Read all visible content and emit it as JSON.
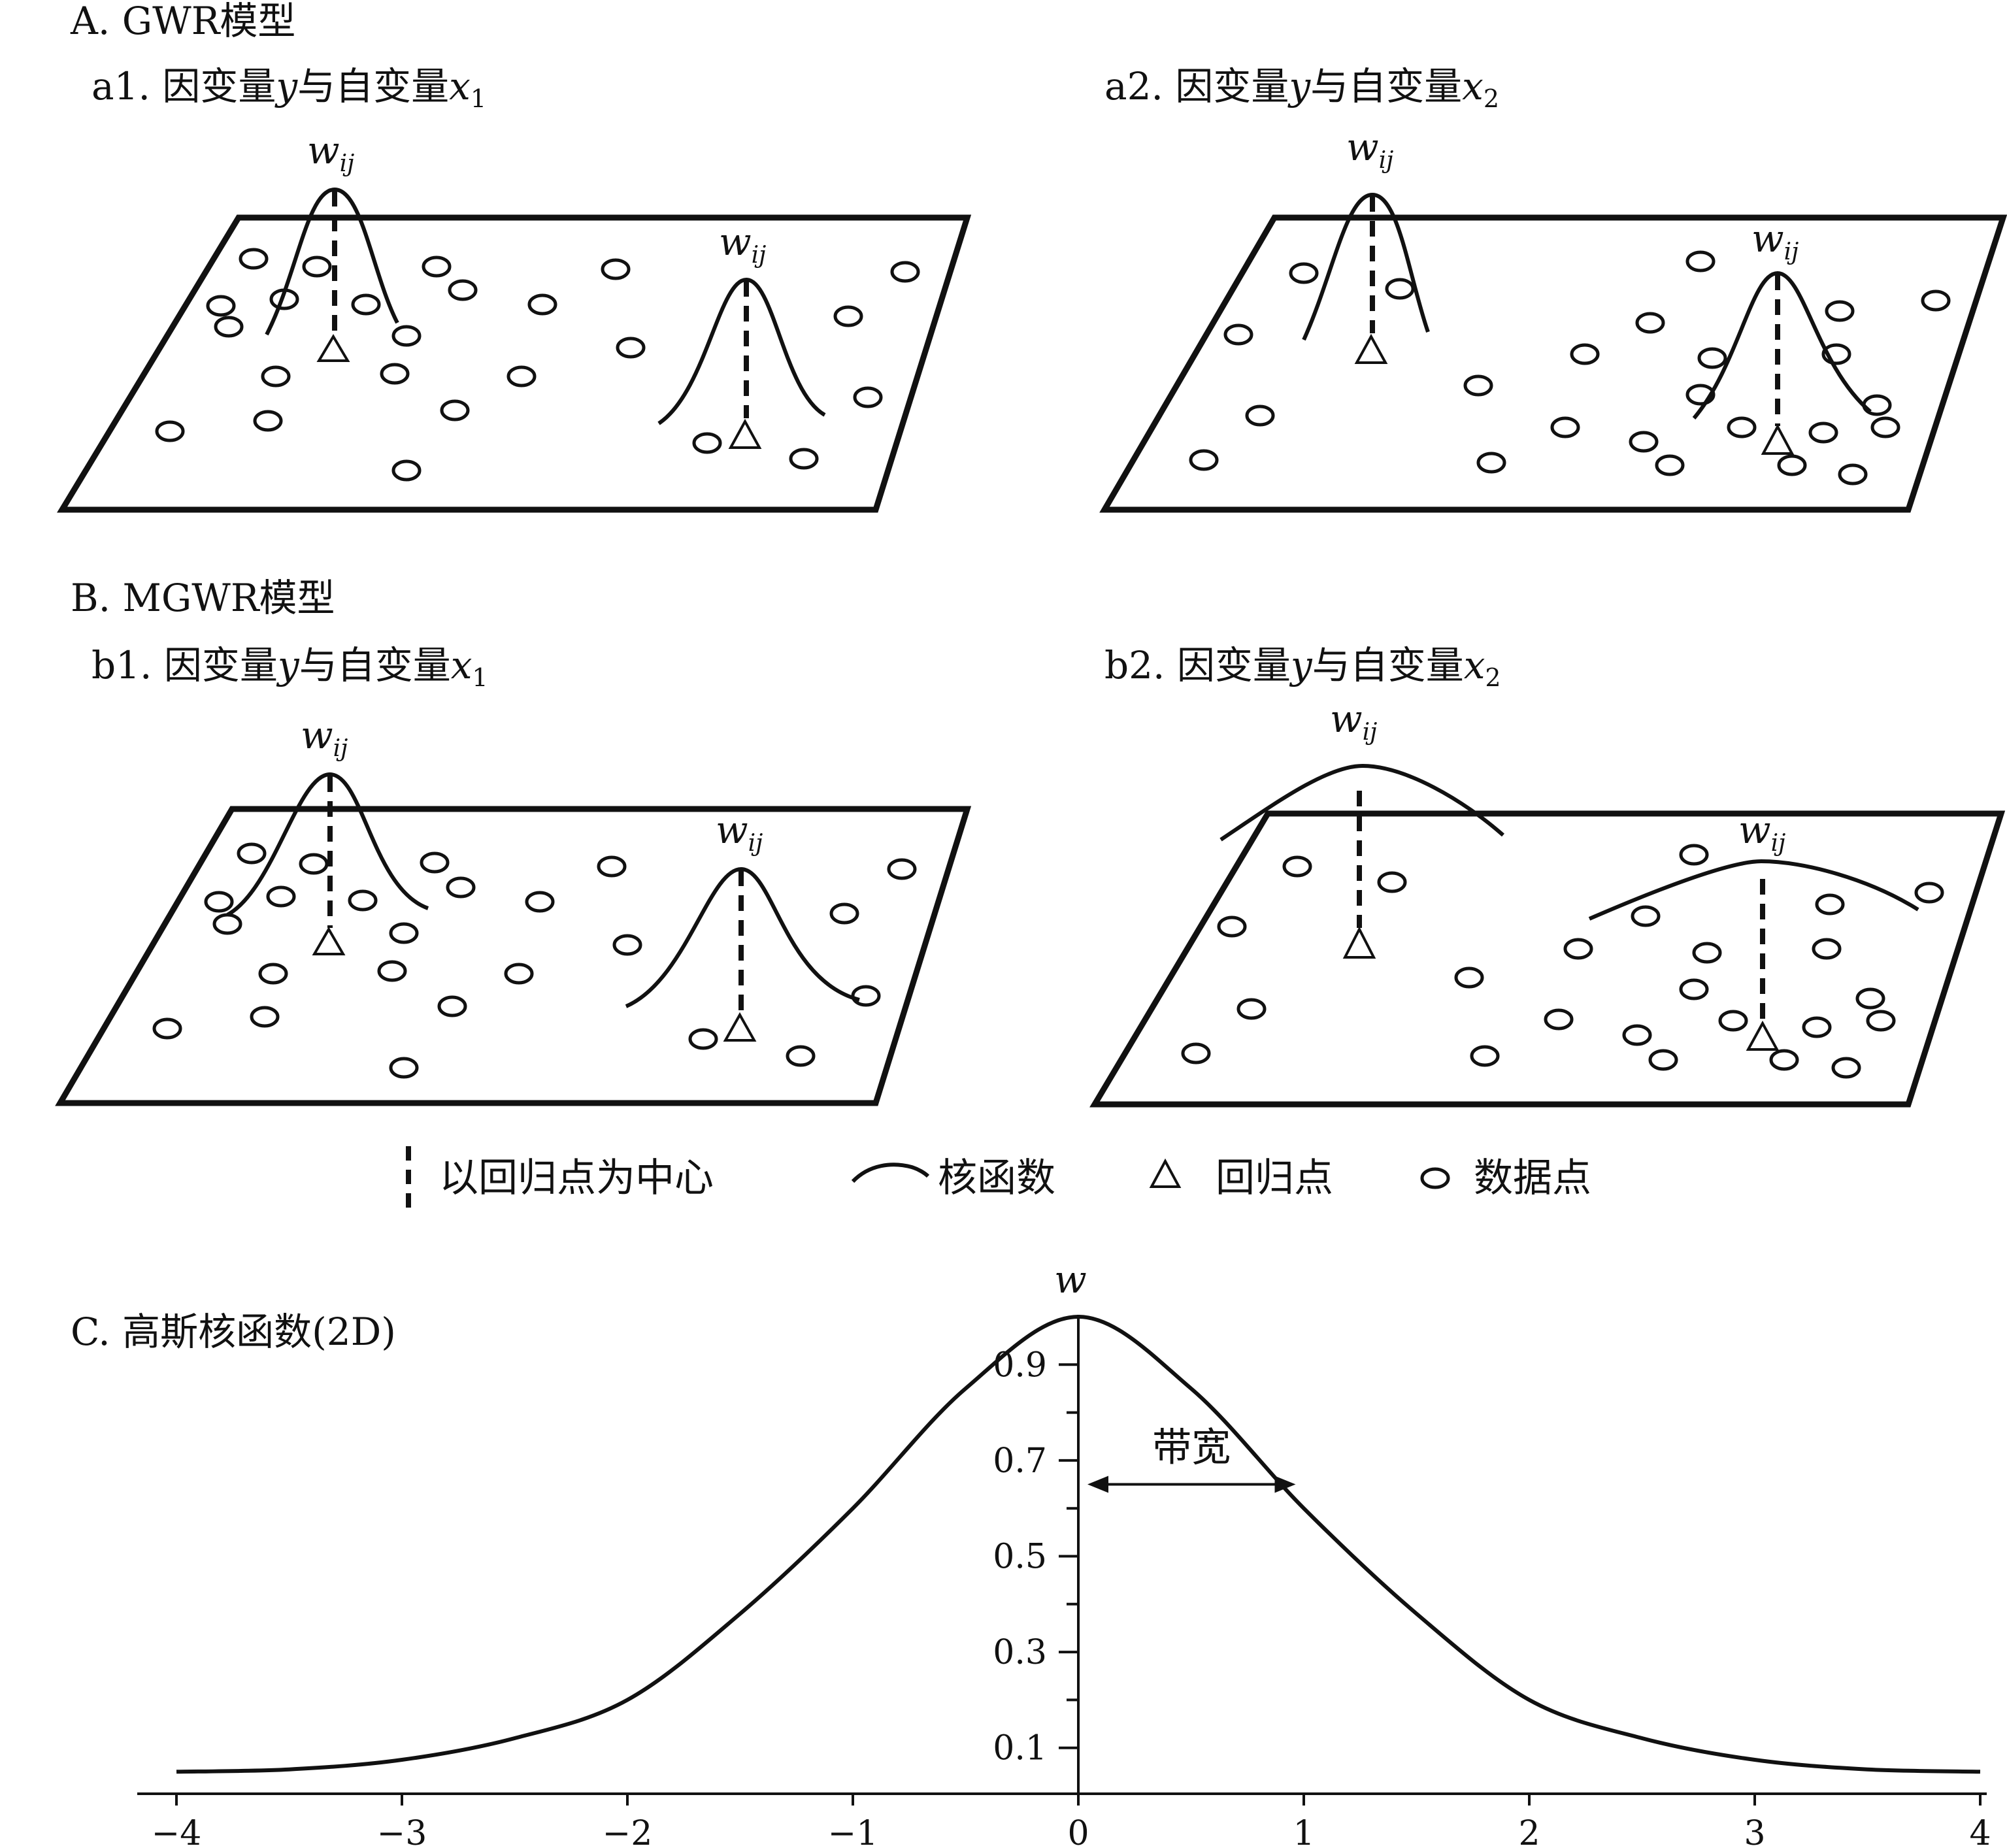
{
  "sections": {
    "A": {
      "title": "A. GWR模型"
    },
    "B": {
      "title": "B. MGWR模型"
    },
    "C": {
      "title": "C. 高斯核函数(2D)"
    }
  },
  "panels": {
    "a1": {
      "prefix": "a1. 因变量",
      "y": "y",
      "mid": "与自变量",
      "x": "x",
      "sub": "1"
    },
    "a2": {
      "prefix": "a2. 因变量",
      "y": "y",
      "mid": "与自变量",
      "x": "x",
      "sub": "2"
    },
    "b1": {
      "prefix": "b1. 因变量",
      "y": "y",
      "mid": "与自变量",
      "x": "x",
      "sub": "1"
    },
    "b2": {
      "prefix": "b2. 因变量",
      "y": "y",
      "mid": "与自变量",
      "x": "x",
      "sub": "2"
    }
  },
  "weight_label": {
    "w": "w",
    "sub": "ij"
  },
  "legend": {
    "center": "以回归点为中心",
    "kernel": "核函数",
    "reg_point": "回归点",
    "data_point": "数据点"
  },
  "chart_data": {
    "type": "line",
    "title": "C. 高斯核函数(2D)",
    "ylabel": "w",
    "xlabel": "",
    "xlim": [
      -4,
      4
    ],
    "ylim": [
      0,
      1
    ],
    "x_ticks": [
      -4,
      -3,
      -2,
      -1,
      0,
      1,
      2,
      3,
      4
    ],
    "x_tick_labels": [
      "−4",
      "−3",
      "−2",
      "−1",
      "0",
      "1",
      "2",
      "3",
      "4"
    ],
    "y_ticks": [
      0.1,
      0.3,
      0.5,
      0.7,
      0.9
    ],
    "y_tick_labels": [
      "0.1",
      "0.3",
      "0.5",
      "0.7",
      "0.9"
    ],
    "series": [
      {
        "x": [
          -4,
          -3.5,
          -3,
          -2.5,
          -2,
          -1.5,
          -1,
          -0.5,
          0,
          0.5,
          1,
          1.5,
          2,
          2.5,
          3,
          3.5,
          4
        ],
        "y": [
          0.05,
          0.055,
          0.075,
          0.12,
          0.2,
          0.38,
          0.6,
          0.85,
          1.0,
          0.85,
          0.6,
          0.38,
          0.2,
          0.12,
          0.075,
          0.055,
          0.05
        ]
      }
    ],
    "annotation": {
      "text": "带宽",
      "from_x": 0,
      "to_x": 0.9,
      "at_y": 0.65
    }
  }
}
